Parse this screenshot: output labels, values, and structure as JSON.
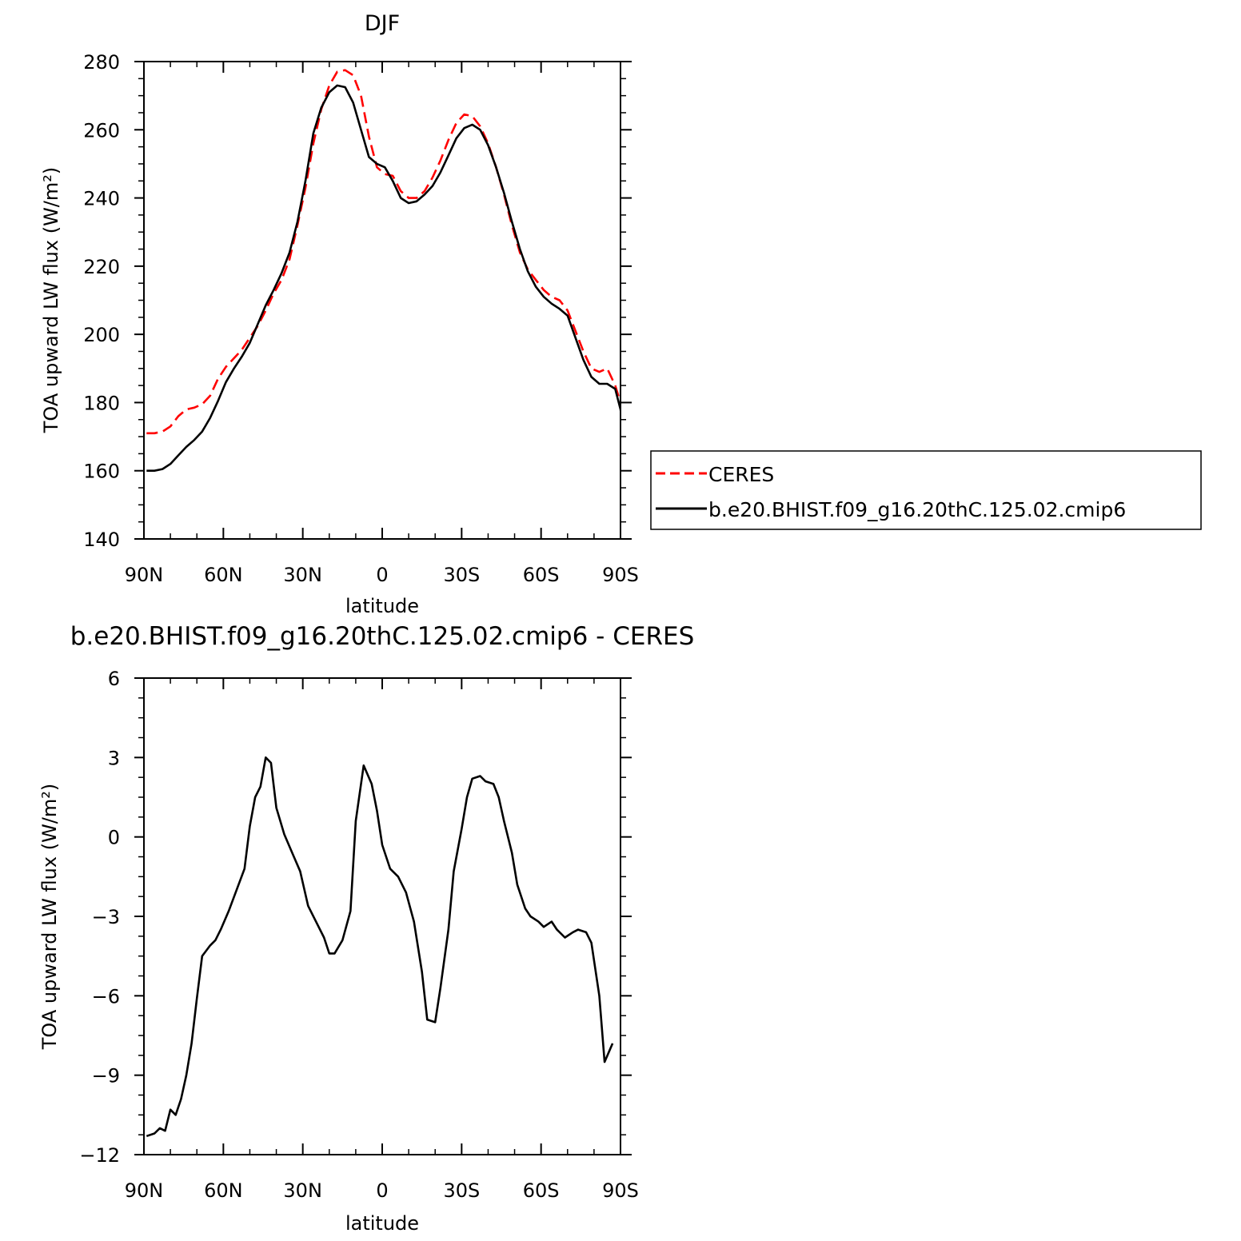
{
  "chart_data": [
    {
      "type": "line",
      "title": "DJF",
      "xlabel": "latitude",
      "ylabel": "TOA upward LW flux (W/m²)",
      "xlim": [
        90,
        -90
      ],
      "ylim": [
        140,
        280
      ],
      "x_ticks": [
        90,
        60,
        30,
        0,
        -30,
        -60,
        -90
      ],
      "x_tick_labels": [
        "90N",
        "60N",
        "30N",
        "0",
        "30S",
        "60S",
        "90S"
      ],
      "y_ticks": [
        140,
        160,
        180,
        200,
        220,
        240,
        260,
        280
      ],
      "y_tick_labels": [
        "140",
        "160",
        "180",
        "200",
        "220",
        "240",
        "260",
        "280"
      ],
      "legend_position": "right",
      "series": [
        {
          "name": "CERES",
          "color": "#ff0000",
          "dash": "dashed",
          "points": [
            [
              89,
              171
            ],
            [
              86,
              171
            ],
            [
              83,
              171.5
            ],
            [
              80,
              173
            ],
            [
              77,
              176
            ],
            [
              74,
              178
            ],
            [
              71,
              178.5
            ],
            [
              68,
              179.5
            ],
            [
              65,
              182
            ],
            [
              62,
              187
            ],
            [
              59,
              190.5
            ],
            [
              56,
              193
            ],
            [
              53,
              195.5
            ],
            [
              50,
              199
            ],
            [
              47,
              202.5
            ],
            [
              44,
              207
            ],
            [
              41,
              212
            ],
            [
              38,
              216
            ],
            [
              35,
              222
            ],
            [
              32,
              232
            ],
            [
              29,
              243
            ],
            [
              26,
              256
            ],
            [
              23,
              266
            ],
            [
              20,
              273
            ],
            [
              17,
              277
            ],
            [
              14,
              277.5
            ],
            [
              11,
              276
            ],
            [
              8,
              270
            ],
            [
              5,
              258
            ],
            [
              2,
              249
            ],
            [
              -1,
              247
            ],
            [
              -4,
              246.5
            ],
            [
              -7,
              242
            ],
            [
              -10,
              240
            ],
            [
              -13,
              240
            ],
            [
              -16,
              242
            ],
            [
              -19,
              246
            ],
            [
              -22,
              251
            ],
            [
              -25,
              257
            ],
            [
              -28,
              262
            ],
            [
              -31,
              264.5
            ],
            [
              -34,
              264
            ],
            [
              -37,
              261
            ],
            [
              -40,
              256
            ],
            [
              -43,
              249
            ],
            [
              -46,
              241
            ],
            [
              -49,
              232
            ],
            [
              -52,
              224
            ],
            [
              -55,
              219
            ],
            [
              -58,
              216
            ],
            [
              -61,
              213
            ],
            [
              -64,
              211
            ],
            [
              -67,
              210
            ],
            [
              -70,
              207
            ],
            [
              -73,
              201
            ],
            [
              -76,
              195
            ],
            [
              -79,
              190
            ],
            [
              -82,
              189
            ],
            [
              -85,
              190
            ],
            [
              -88,
              185
            ],
            [
              -90,
              180
            ]
          ]
        },
        {
          "name": "b.e20.BHIST.f09_g16.20thC.125.02.cmip6",
          "color": "#000000",
          "dash": "solid",
          "points": [
            [
              89,
              160
            ],
            [
              86,
              160
            ],
            [
              83,
              160.5
            ],
            [
              80,
              162
            ],
            [
              77,
              164.5
            ],
            [
              74,
              167
            ],
            [
              71,
              169
            ],
            [
              68,
              171.5
            ],
            [
              65,
              175.5
            ],
            [
              62,
              180.5
            ],
            [
              59,
              186
            ],
            [
              56,
              190
            ],
            [
              53,
              193.5
            ],
            [
              50,
              197.5
            ],
            [
              47,
              203
            ],
            [
              44,
              208.5
            ],
            [
              41,
              213
            ],
            [
              38,
              218
            ],
            [
              35,
              224
            ],
            [
              32,
              233
            ],
            [
              29,
              245
            ],
            [
              26,
              259
            ],
            [
              23,
              266.5
            ],
            [
              20,
              271
            ],
            [
              17,
              273
            ],
            [
              14,
              272.5
            ],
            [
              11,
              268
            ],
            [
              8,
              260
            ],
            [
              5,
              252
            ],
            [
              2,
              250
            ],
            [
              -1,
              249
            ],
            [
              -4,
              245
            ],
            [
              -7,
              240
            ],
            [
              -10,
              238.5
            ],
            [
              -13,
              239
            ],
            [
              -16,
              241
            ],
            [
              -19,
              243.5
            ],
            [
              -22,
              247.5
            ],
            [
              -25,
              252.5
            ],
            [
              -28,
              257.5
            ],
            [
              -31,
              260.5
            ],
            [
              -34,
              261.5
            ],
            [
              -37,
              260
            ],
            [
              -40,
              255.5
            ],
            [
              -43,
              249
            ],
            [
              -46,
              241.5
            ],
            [
              -49,
              233
            ],
            [
              -52,
              225
            ],
            [
              -55,
              218.5
            ],
            [
              -58,
              214
            ],
            [
              -61,
              211
            ],
            [
              -64,
              209
            ],
            [
              -67,
              207.5
            ],
            [
              -70,
              205.5
            ],
            [
              -73,
              199
            ],
            [
              -76,
              192.5
            ],
            [
              -79,
              187.5
            ],
            [
              -82,
              185.5
            ],
            [
              -85,
              185.5
            ],
            [
              -88,
              184
            ],
            [
              -90,
              178
            ],
            [
              -91,
              172
            ]
          ]
        }
      ]
    },
    {
      "type": "line",
      "title": "b.e20.BHIST.f09_g16.20thC.125.02.cmip6 - CERES",
      "xlabel": "latitude",
      "ylabel": "TOA upward LW flux (W/m²)",
      "xlim": [
        90,
        -90
      ],
      "ylim": [
        -12,
        6
      ],
      "x_ticks": [
        90,
        60,
        30,
        0,
        -30,
        -60,
        -90
      ],
      "x_tick_labels": [
        "90N",
        "60N",
        "30N",
        "0",
        "30S",
        "60S",
        "90S"
      ],
      "y_ticks": [
        -12,
        -9,
        -6,
        -3,
        0,
        3,
        6
      ],
      "y_tick_labels": [
        "−12",
        "−9",
        "−6",
        "−3",
        "0",
        "3",
        "6"
      ],
      "series": [
        {
          "color": "#000000",
          "dash": "solid",
          "points": [
            [
              89,
              -11.3
            ],
            [
              86,
              -11.2
            ],
            [
              84,
              -11.0
            ],
            [
              82,
              -11.1
            ],
            [
              80,
              -10.3
            ],
            [
              78,
              -10.5
            ],
            [
              76,
              -9.9
            ],
            [
              74,
              -9.0
            ],
            [
              72,
              -7.8
            ],
            [
              70,
              -6.1
            ],
            [
              68,
              -4.5
            ],
            [
              65,
              -4.1
            ],
            [
              63,
              -3.9
            ],
            [
              61,
              -3.5
            ],
            [
              58,
              -2.8
            ],
            [
              55,
              -2.0
            ],
            [
              52,
              -1.2
            ],
            [
              50,
              0.4
            ],
            [
              48,
              1.5
            ],
            [
              46,
              1.9
            ],
            [
              44,
              3.0
            ],
            [
              42,
              2.8
            ],
            [
              40,
              1.1
            ],
            [
              37,
              0.1
            ],
            [
              34,
              -0.6
            ],
            [
              31,
              -1.3
            ],
            [
              28,
              -2.6
            ],
            [
              25,
              -3.2
            ],
            [
              22,
              -3.8
            ],
            [
              20,
              -4.4
            ],
            [
              18,
              -4.4
            ],
            [
              15,
              -3.9
            ],
            [
              12,
              -2.8
            ],
            [
              10,
              0.6
            ],
            [
              7,
              2.7
            ],
            [
              4,
              2.0
            ],
            [
              2,
              1.0
            ],
            [
              0,
              -0.3
            ],
            [
              -3,
              -1.2
            ],
            [
              -6,
              -1.5
            ],
            [
              -9,
              -2.1
            ],
            [
              -12,
              -3.2
            ],
            [
              -15,
              -5.1
            ],
            [
              -17,
              -6.9
            ],
            [
              -20,
              -7.0
            ],
            [
              -22,
              -5.7
            ],
            [
              -25,
              -3.5
            ],
            [
              -27,
              -1.3
            ],
            [
              -30,
              0.3
            ],
            [
              -32,
              1.5
            ],
            [
              -34,
              2.2
            ],
            [
              -37,
              2.3
            ],
            [
              -39,
              2.1
            ],
            [
              -42,
              2.0
            ],
            [
              -44,
              1.5
            ],
            [
              -46,
              0.6
            ],
            [
              -49,
              -0.6
            ],
            [
              -51,
              -1.8
            ],
            [
              -54,
              -2.7
            ],
            [
              -56,
              -3.0
            ],
            [
              -59,
              -3.2
            ],
            [
              -61,
              -3.4
            ],
            [
              -64,
              -3.2
            ],
            [
              -66,
              -3.5
            ],
            [
              -69,
              -3.8
            ],
            [
              -72,
              -3.6
            ],
            [
              -74,
              -3.5
            ],
            [
              -77,
              -3.6
            ],
            [
              -79,
              -4.0
            ],
            [
              -82,
              -6.0
            ],
            [
              -84,
              -8.5
            ],
            [
              -87,
              -7.8
            ]
          ]
        }
      ]
    }
  ]
}
